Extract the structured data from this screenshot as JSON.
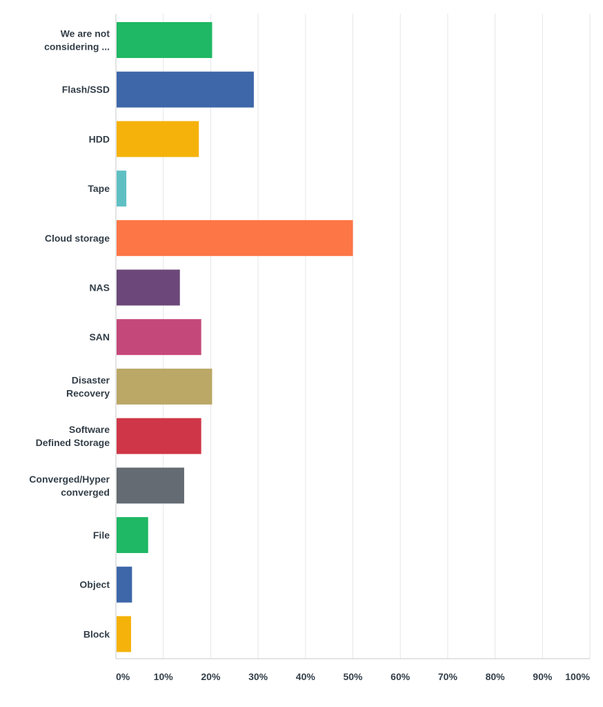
{
  "chart_data": {
    "type": "bar",
    "orientation": "horizontal",
    "categories": [
      [
        "We are not",
        "considering ..."
      ],
      [
        "Flash/SSD"
      ],
      [
        "HDD"
      ],
      [
        "Tape"
      ],
      [
        "Cloud storage"
      ],
      [
        "NAS"
      ],
      [
        "SAN"
      ],
      [
        "Disaster",
        "Recovery"
      ],
      [
        "Software",
        "Defined Storage"
      ],
      [
        "Converged/Hyper",
        "converged"
      ],
      [
        "File"
      ],
      [
        "Object"
      ],
      [
        "Block"
      ]
    ],
    "values": [
      20.3,
      29.1,
      17.5,
      2.2,
      50.0,
      13.5,
      18.0,
      20.3,
      18.0,
      14.4,
      6.8,
      3.4,
      3.2
    ],
    "colors": [
      "#1fb864",
      "#3e67a9",
      "#f5b20b",
      "#5fc0c4",
      "#fd7645",
      "#6b4879",
      "#c5487b",
      "#bba867",
      "#cf3648",
      "#646b72",
      "#1fb864",
      "#3e67a9",
      "#f5b20b"
    ],
    "xlim": [
      0,
      100
    ],
    "xticks": [
      "0%",
      "10%",
      "20%",
      "30%",
      "40%",
      "50%",
      "60%",
      "70%",
      "80%",
      "90%",
      "100%"
    ],
    "grid": true,
    "title": "",
    "xlabel": "",
    "ylabel": ""
  }
}
